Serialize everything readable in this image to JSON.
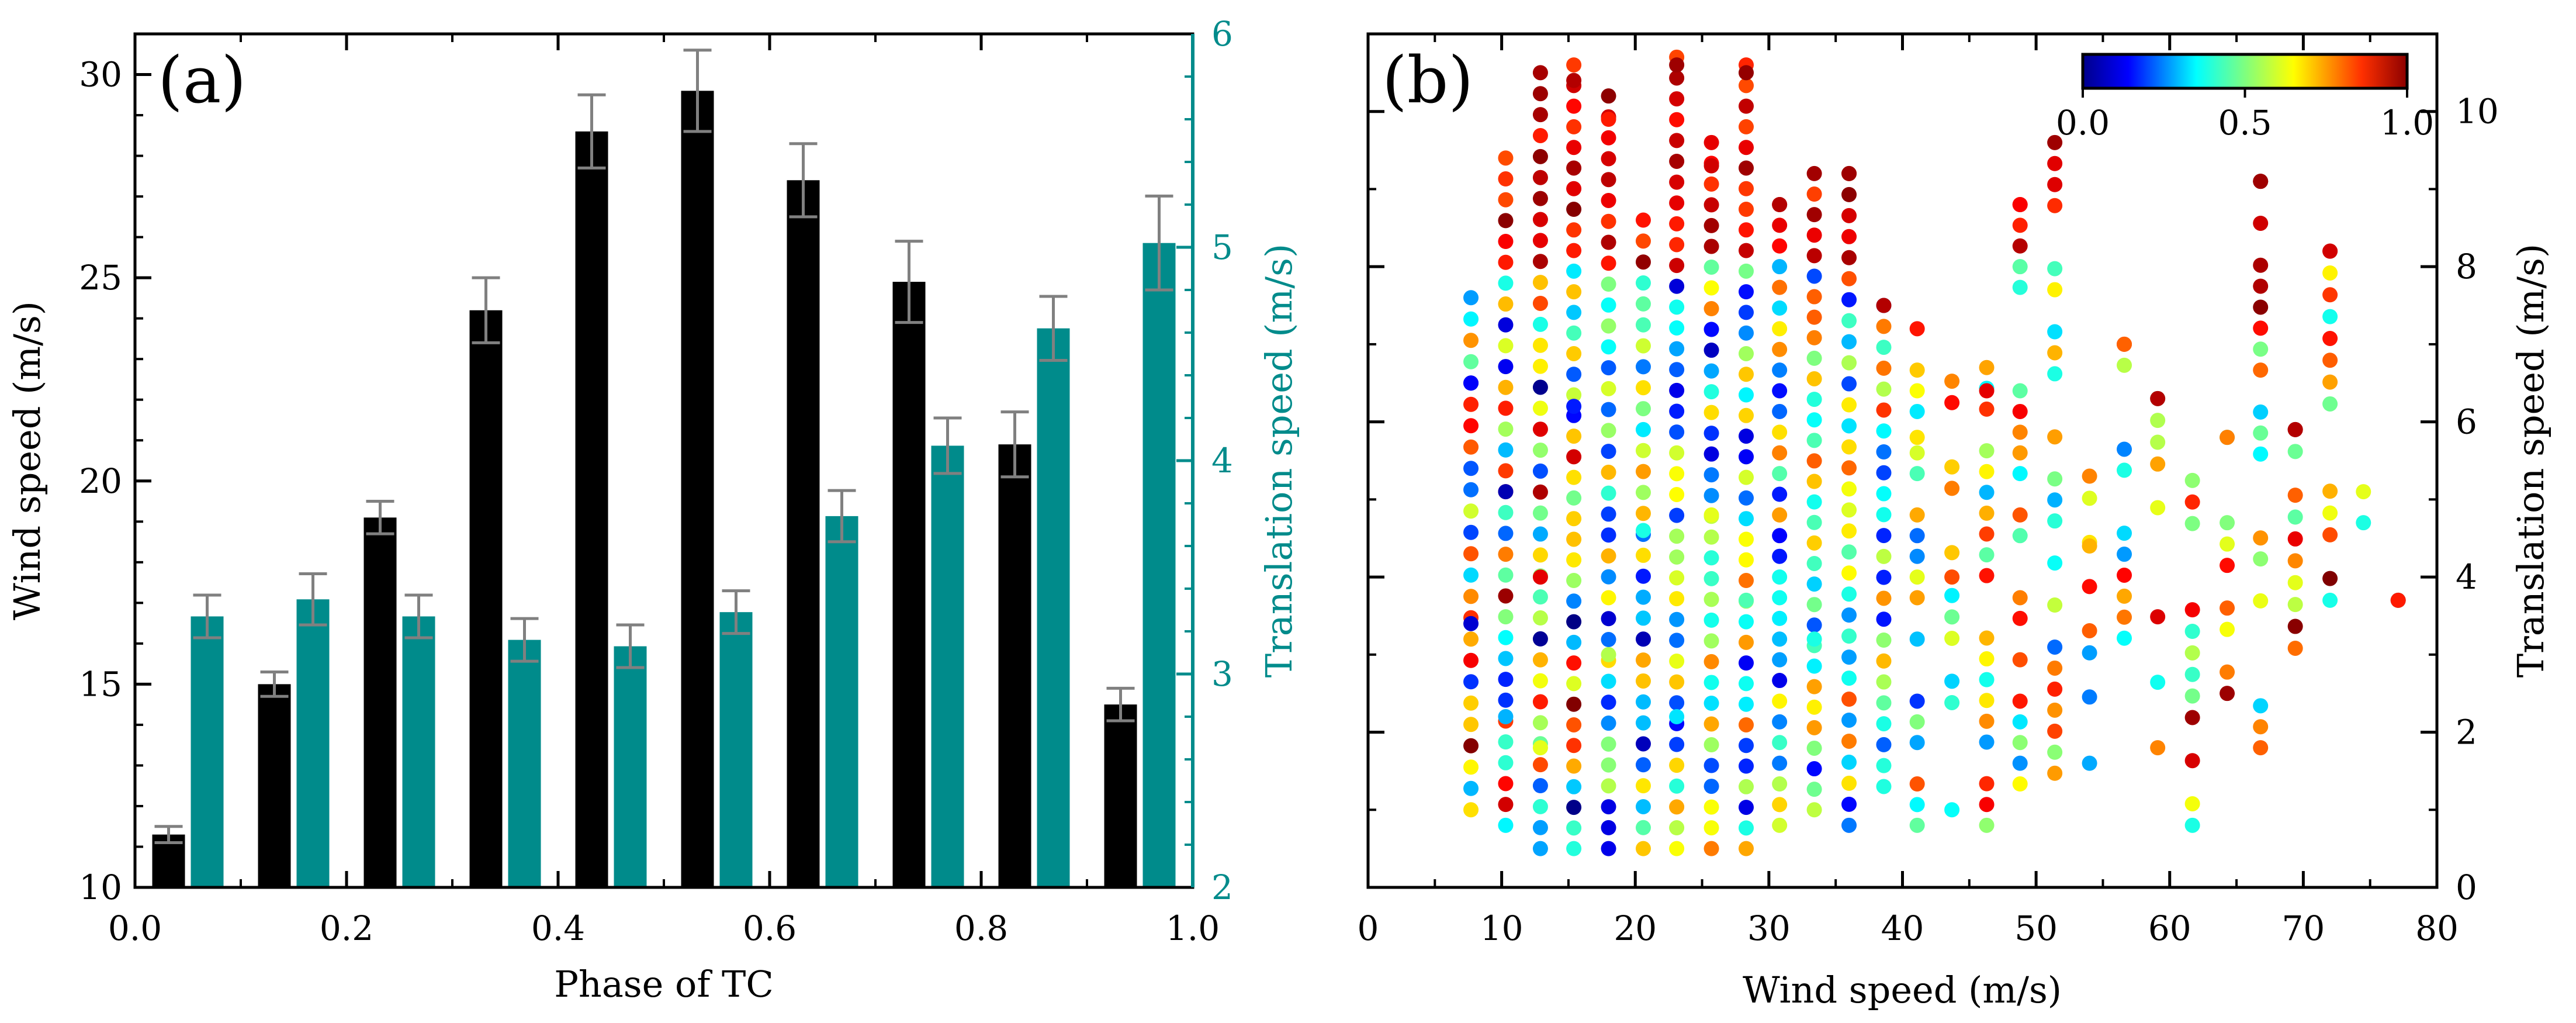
{
  "chart_data": [
    {
      "type": "bar",
      "panel_label": "(a)",
      "xlabel": "Phase of TC",
      "ylabel": "Wind speed (m/s)",
      "y2label": "Translation speed (m/s)",
      "xlim": [
        0.0,
        1.0
      ],
      "ylim": [
        10,
        31
      ],
      "y2lim": [
        2,
        6
      ],
      "xticks": [
        "0.0",
        "0.2",
        "0.4",
        "0.6",
        "0.8",
        "1.0"
      ],
      "yticks": [
        "10",
        "15",
        "20",
        "25",
        "30"
      ],
      "y2ticks": [
        "2",
        "3",
        "4",
        "5",
        "6"
      ],
      "categories": [
        0.05,
        0.15,
        0.25,
        0.35,
        0.45,
        0.55,
        0.65,
        0.75,
        0.85,
        0.95
      ],
      "series": [
        {
          "name": "Wind speed",
          "axis": "left",
          "color": "#000000",
          "values": [
            11.3,
            15.0,
            19.1,
            24.2,
            28.6,
            29.6,
            27.4,
            24.9,
            20.9,
            14.5
          ],
          "errors": [
            0.2,
            0.3,
            0.4,
            0.8,
            0.9,
            1.0,
            0.9,
            1.0,
            0.8,
            0.4
          ]
        },
        {
          "name": "Translation speed",
          "axis": "right",
          "color": "#008b8b",
          "values": [
            3.27,
            3.35,
            3.27,
            3.16,
            3.13,
            3.29,
            3.74,
            4.07,
            4.62,
            5.02
          ],
          "errors": [
            0.1,
            0.12,
            0.1,
            0.1,
            0.1,
            0.1,
            0.12,
            0.13,
            0.15,
            0.22
          ]
        }
      ]
    },
    {
      "type": "scatter",
      "panel_label": "(b)",
      "xlabel": "Wind speed (m/s)",
      "ylabel": "Translation speed (m/s)",
      "xlim": [
        0,
        80
      ],
      "ylim": [
        0,
        11
      ],
      "xticks": [
        "0",
        "10",
        "20",
        "30",
        "40",
        "50",
        "60",
        "70",
        "80"
      ],
      "yticks": [
        "0",
        "2",
        "4",
        "6",
        "8",
        "10"
      ],
      "colorbar": {
        "colormap": "jet",
        "range": [
          0.0,
          1.0
        ],
        "ticks": [
          "0.0",
          "0.5",
          "1.0"
        ],
        "position": "top-right"
      },
      "x_columns": [
        7.7,
        10.3,
        12.9,
        15.4,
        18.0,
        20.6,
        23.1,
        25.7,
        28.3,
        30.8,
        33.4,
        36.0,
        38.6,
        41.1,
        43.7,
        46.3,
        48.8,
        51.4,
        54.0,
        56.6,
        59.1,
        61.7,
        64.3,
        66.8,
        69.4,
        72.0,
        74.5,
        77.1
      ],
      "y_ranges": [
        [
          1.0,
          7.6
        ],
        [
          0.8,
          9.4
        ],
        [
          0.5,
          10.5
        ],
        [
          0.5,
          10.6
        ],
        [
          0.5,
          10.2
        ],
        [
          0.5,
          8.6
        ],
        [
          0.5,
          10.7
        ],
        [
          0.5,
          9.6
        ],
        [
          0.5,
          10.6
        ],
        [
          0.8,
          8.8
        ],
        [
          1.0,
          9.2
        ],
        [
          0.8,
          9.2
        ],
        [
          1.3,
          7.5
        ],
        [
          0.8,
          7.2
        ],
        [
          1.0,
          6.8
        ],
        [
          0.8,
          6.7
        ],
        [
          0.8,
          8.8
        ],
        [
          1.2,
          9.6
        ],
        [
          1.6,
          5.3
        ],
        [
          2.4,
          7.0
        ],
        [
          1.8,
          6.3
        ],
        [
          0.8,
          5.8
        ],
        [
          2.5,
          5.8
        ],
        [
          1.8,
          9.1
        ],
        [
          2.8,
          5.9
        ],
        [
          3.7,
          8.2
        ],
        [
          4.7,
          5.1
        ],
        [
          3.7,
          3.7
        ]
      ],
      "points": [
        [
          7.7,
          3.4,
          0.08
        ],
        [
          7.7,
          6.5,
          0.12
        ],
        [
          10.3,
          5.1,
          0.05
        ],
        [
          10.3,
          2.2,
          0.3
        ],
        [
          12.9,
          4.0,
          0.9
        ],
        [
          12.9,
          1.8,
          0.6
        ],
        [
          15.4,
          6.2,
          0.15
        ],
        [
          15.4,
          10.4,
          0.95
        ],
        [
          18.0,
          3.0,
          0.55
        ],
        [
          18.0,
          9.9,
          0.85
        ],
        [
          20.6,
          4.6,
          0.4
        ],
        [
          23.1,
          10.6,
          0.97
        ],
        [
          23.1,
          2.2,
          0.35
        ],
        [
          25.7,
          9.3,
          0.92
        ],
        [
          25.7,
          4.8,
          0.6
        ],
        [
          28.3,
          10.5,
          0.98
        ],
        [
          28.3,
          3.7,
          0.45
        ],
        [
          30.8,
          8.8,
          0.95
        ],
        [
          33.4,
          3.2,
          0.4
        ],
        [
          36.0,
          9.2,
          0.97
        ],
        [
          38.6,
          7.5,
          0.95
        ],
        [
          41.1,
          5.8,
          0.65
        ],
        [
          43.7,
          4.0,
          0.8
        ],
        [
          46.3,
          6.4,
          0.9
        ],
        [
          48.8,
          8.8,
          0.88
        ],
        [
          51.4,
          9.6,
          0.97
        ],
        [
          54.0,
          4.4,
          0.7
        ],
        [
          56.6,
          7.0,
          0.78
        ],
        [
          59.1,
          6.3,
          0.95
        ],
        [
          61.7,
          0.8,
          0.4
        ],
        [
          64.3,
          5.8,
          0.75
        ],
        [
          66.8,
          9.1,
          0.97
        ],
        [
          69.4,
          5.9,
          0.95
        ],
        [
          72.0,
          8.2,
          0.92
        ],
        [
          74.5,
          5.1,
          0.6
        ],
        [
          77.1,
          3.7,
          0.85
        ]
      ]
    }
  ]
}
